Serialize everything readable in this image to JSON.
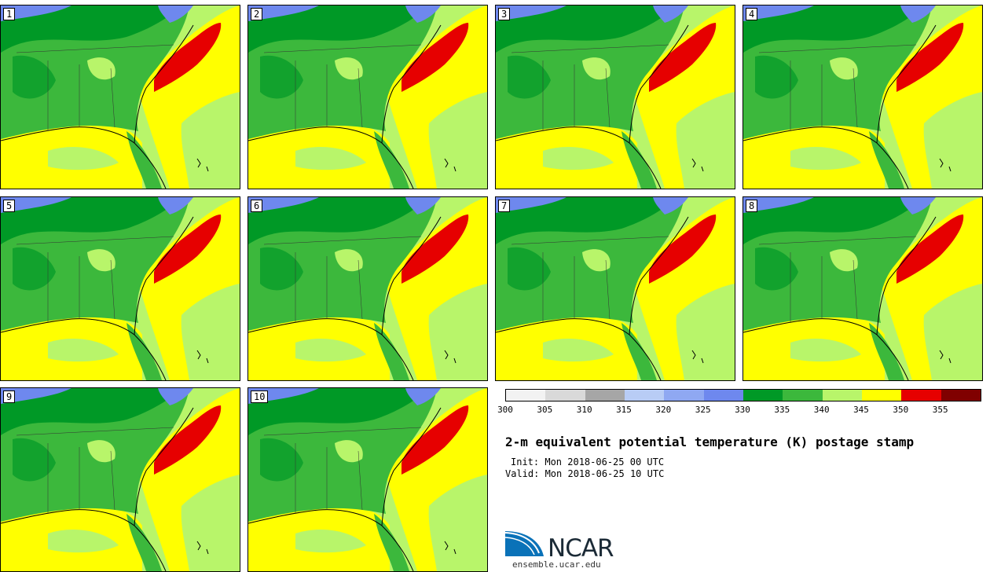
{
  "panels": [
    {
      "label": "1"
    },
    {
      "label": "2"
    },
    {
      "label": "3"
    },
    {
      "label": "4"
    },
    {
      "label": "5"
    },
    {
      "label": "6"
    },
    {
      "label": "7"
    },
    {
      "label": "8"
    },
    {
      "label": "9"
    },
    {
      "label": "10"
    }
  ],
  "colorbar": {
    "ticks": [
      "300",
      "305",
      "310",
      "315",
      "320",
      "325",
      "330",
      "335",
      "340",
      "345",
      "350",
      "355"
    ],
    "colors": [
      "#f2f2f2",
      "#d9d9d9",
      "#a6a6a6",
      "#b8ccf5",
      "#8fa8f2",
      "#6e88ee",
      "#009926",
      "#3cb83c",
      "#b8f56a",
      "#ffff00",
      "#e60000",
      "#800000"
    ]
  },
  "title": "2-m equivalent potential temperature (K) postage stamp",
  "init": "Init: Mon 2018-06-25 00 UTC",
  "valid": "Valid: Mon 2018-06-25 10 UTC",
  "logo": {
    "text": "NCAR",
    "url": "ensemble.ucar.edu"
  },
  "colors": {
    "ocean_warm": "#ffff00",
    "land_dark": "#009926",
    "land_mid": "#3cb83c",
    "land_light": "#b8f56a",
    "cool": "#6e88ee",
    "hot": "#e60000"
  }
}
